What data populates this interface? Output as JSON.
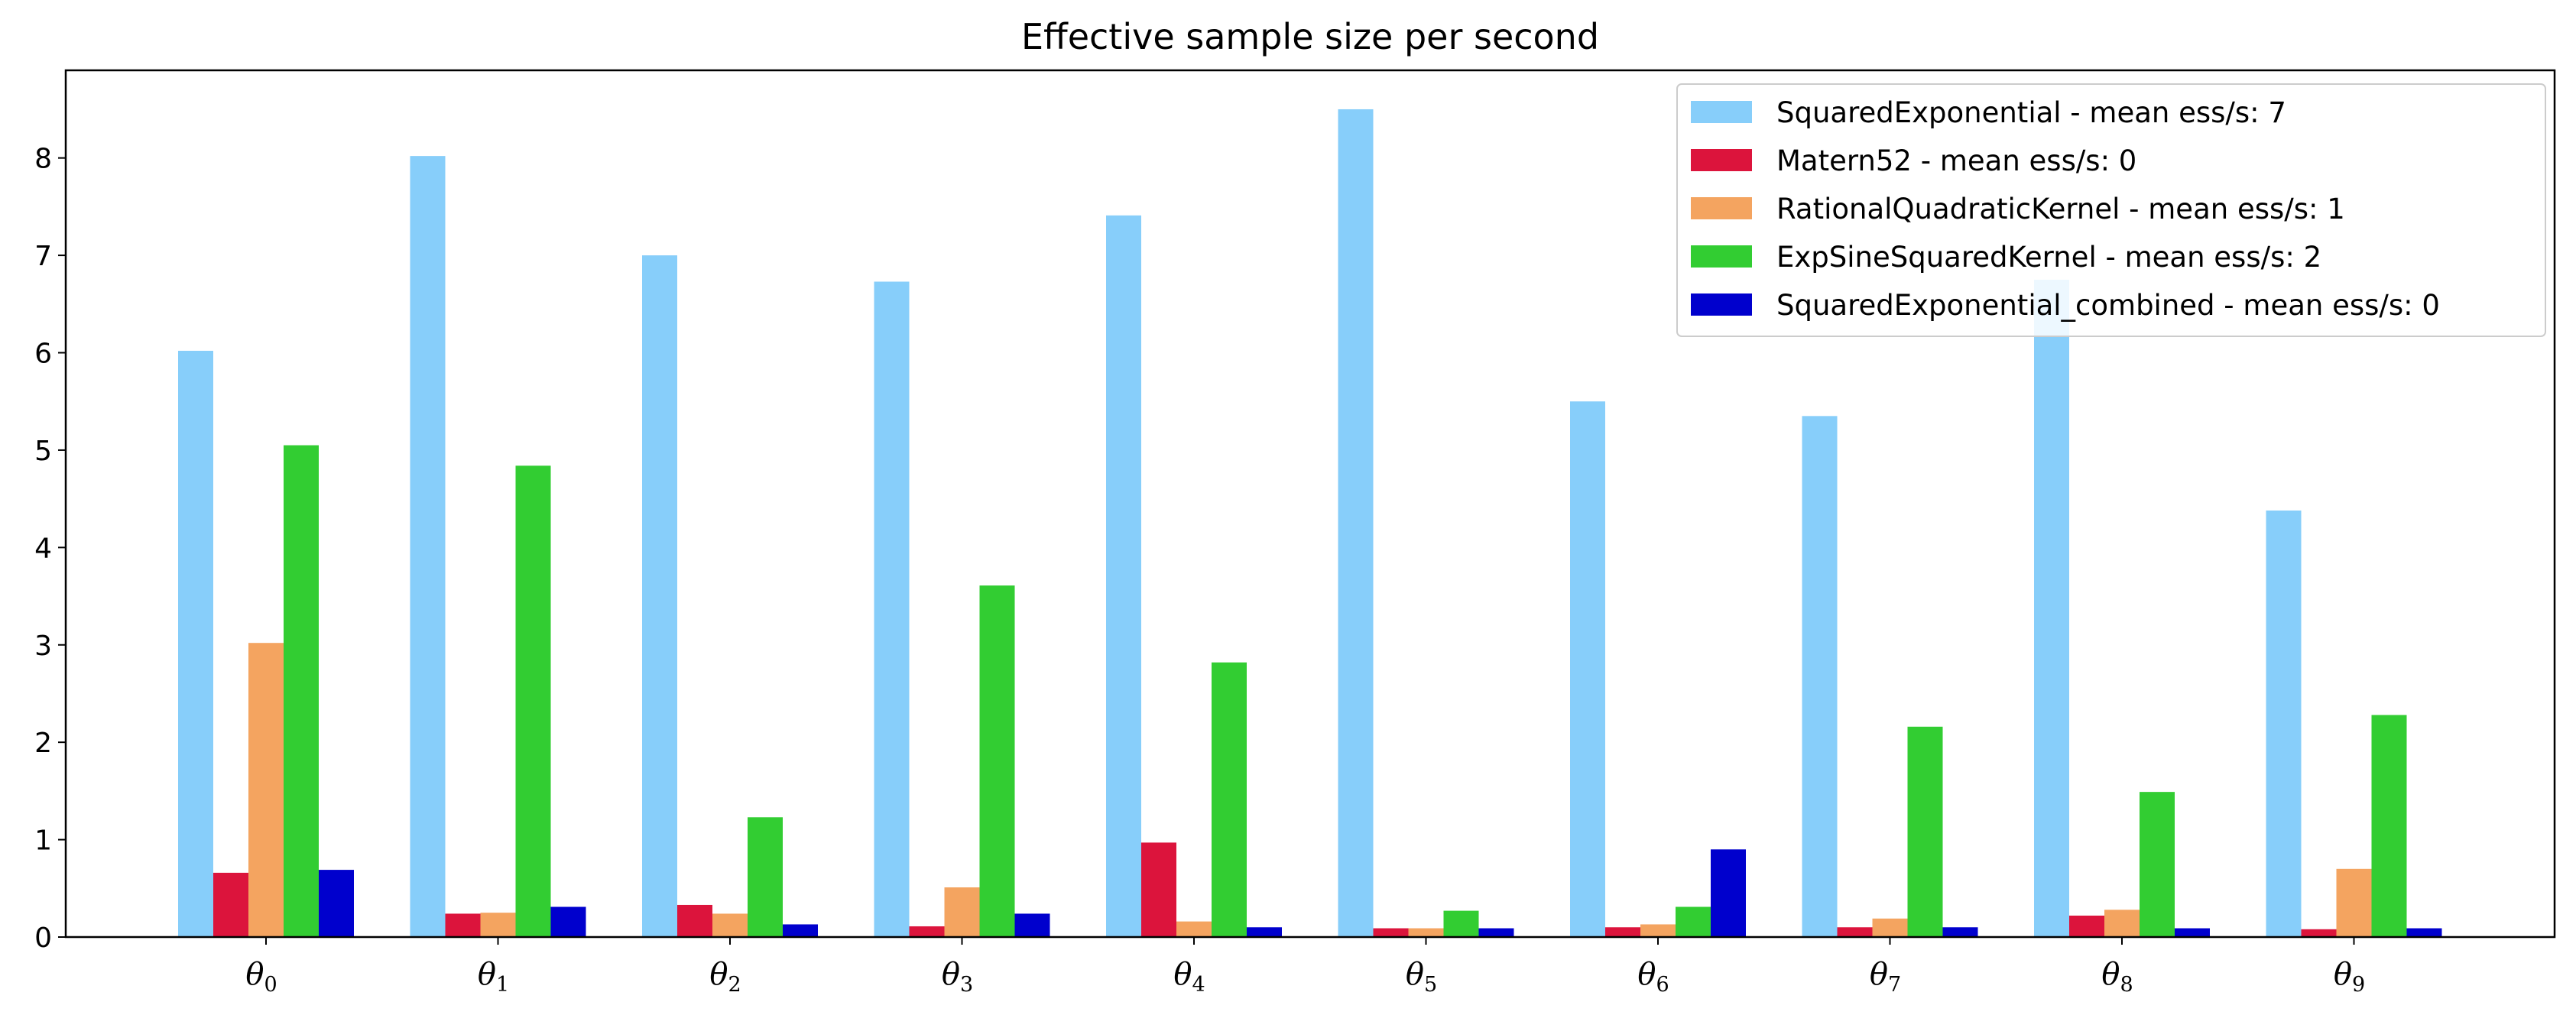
{
  "chart_data": {
    "type": "bar",
    "title": "Effective sample size per second",
    "xlabel": "",
    "ylabel": "",
    "ylim": [
      0,
      8.9
    ],
    "yticks": [
      0,
      1,
      2,
      3,
      4,
      5,
      6,
      7,
      8
    ],
    "grid": false,
    "legend_position": "top-right",
    "categories": [
      {
        "base": "θ",
        "sub": "0"
      },
      {
        "base": "θ",
        "sub": "1"
      },
      {
        "base": "θ",
        "sub": "2"
      },
      {
        "base": "θ",
        "sub": "3"
      },
      {
        "base": "θ",
        "sub": "4"
      },
      {
        "base": "θ",
        "sub": "5"
      },
      {
        "base": "θ",
        "sub": "6"
      },
      {
        "base": "θ",
        "sub": "7"
      },
      {
        "base": "θ",
        "sub": "8"
      },
      {
        "base": "θ",
        "sub": "9"
      }
    ],
    "series": [
      {
        "name": "SquaredExponential - mean ess/s: 7",
        "color": "#87CEFA",
        "values": [
          6.02,
          8.02,
          7.0,
          6.73,
          7.41,
          8.5,
          5.5,
          5.35,
          6.75,
          4.38
        ]
      },
      {
        "name": "Matern52 - mean ess/s: 0",
        "color": "#DC143C",
        "values": [
          0.66,
          0.24,
          0.33,
          0.11,
          0.97,
          0.09,
          0.1,
          0.1,
          0.22,
          0.08
        ]
      },
      {
        "name": "RationalQuadraticKernel - mean ess/s: 1",
        "color": "#F4A460",
        "values": [
          3.02,
          0.25,
          0.24,
          0.51,
          0.16,
          0.09,
          0.13,
          0.19,
          0.28,
          0.7
        ]
      },
      {
        "name": "ExpSineSquaredKernel - mean ess/s: 2",
        "color": "#32CD32",
        "values": [
          5.05,
          4.84,
          1.23,
          3.61,
          2.82,
          0.27,
          0.31,
          2.16,
          1.49,
          2.28
        ]
      },
      {
        "name": "SquaredExponential_combined - mean ess/s: 0",
        "color": "#0000CD",
        "values": [
          0.69,
          0.31,
          0.13,
          0.24,
          0.1,
          0.09,
          0.9,
          0.1,
          0.09,
          0.09
        ]
      }
    ]
  }
}
